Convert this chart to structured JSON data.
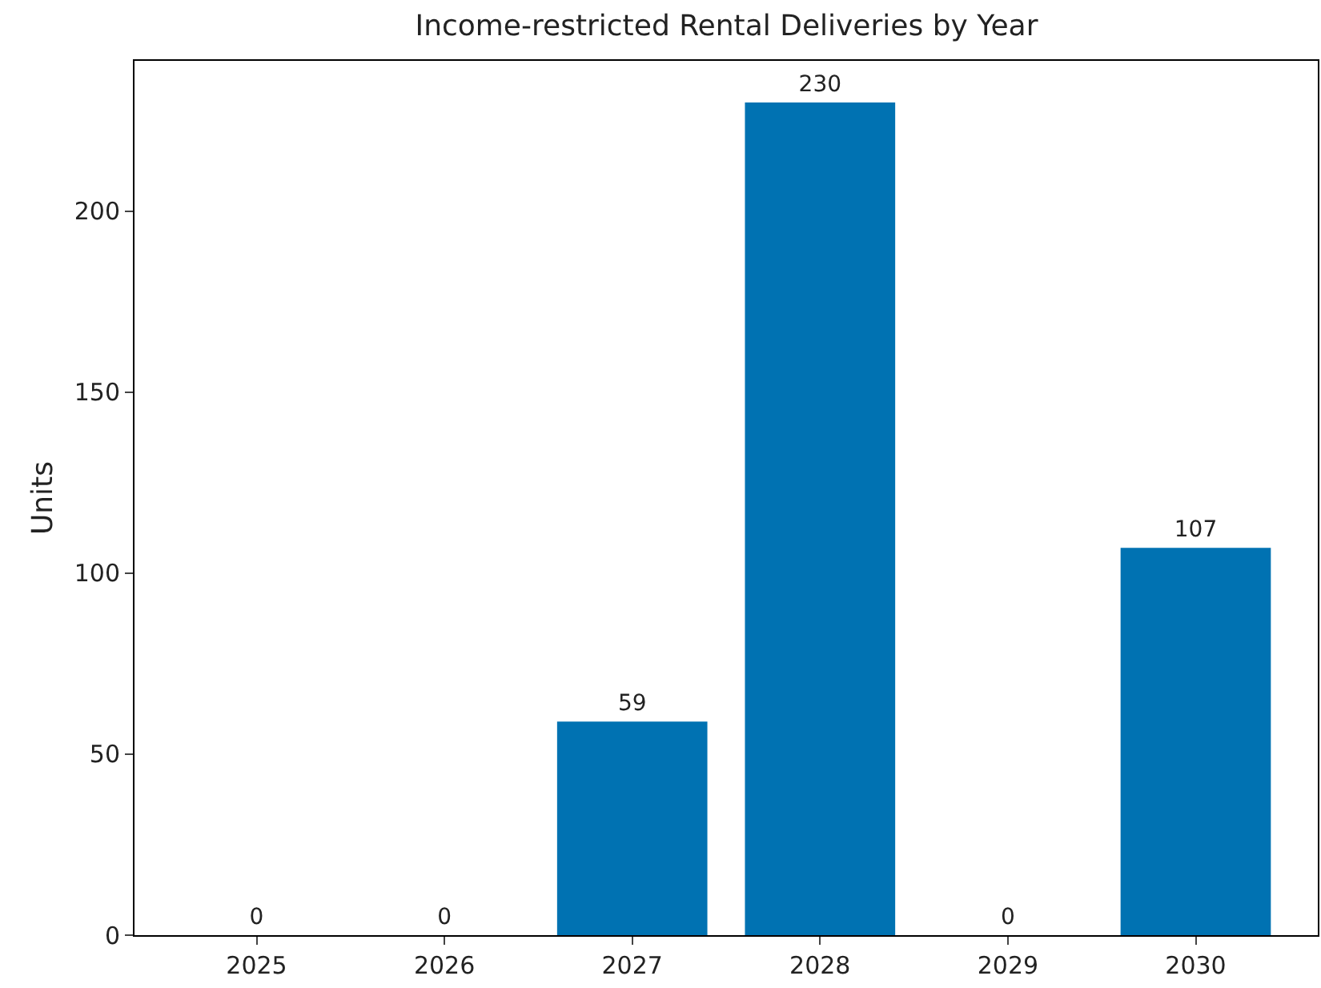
{
  "chart_data": {
    "type": "bar",
    "title": "Income-restricted Rental Deliveries by Year",
    "ylabel": "Units",
    "categories": [
      "2025",
      "2026",
      "2027",
      "2028",
      "2029",
      "2030"
    ],
    "values": [
      0,
      0,
      59,
      230,
      0,
      107
    ],
    "color": "#0072b2",
    "data_labels": true,
    "ylim": [
      0,
      241.5
    ],
    "yticks": [
      0,
      50,
      100,
      150,
      200
    ]
  }
}
